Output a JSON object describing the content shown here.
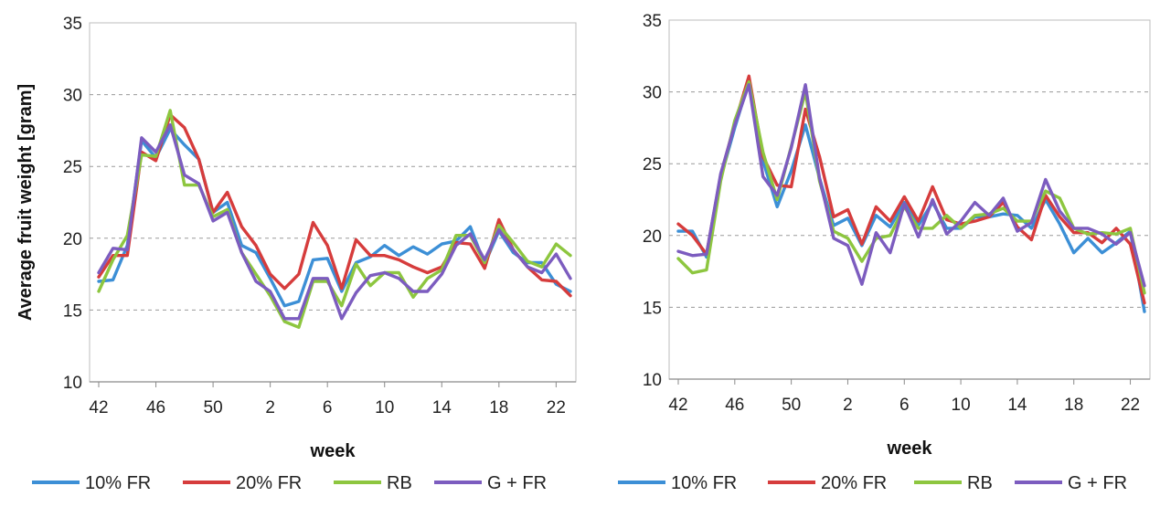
{
  "chart_data": [
    {
      "type": "line",
      "title": "",
      "xlabel": "week",
      "ylabel": "Average fruit weight [gram]",
      "ylim": [
        10,
        35
      ],
      "yticks": [
        10,
        15,
        20,
        25,
        30,
        35
      ],
      "grid": "horizontal dashed",
      "legend": "bottom",
      "x": [
        42,
        43,
        44,
        45,
        46,
        47,
        48,
        49,
        50,
        51,
        52,
        1,
        2,
        3,
        4,
        5,
        6,
        7,
        8,
        9,
        10,
        11,
        12,
        13,
        14,
        15,
        16,
        17,
        18,
        19,
        20,
        21,
        22,
        23
      ],
      "xtick_labels": [
        "42",
        "46",
        "50",
        "2",
        "6",
        "10",
        "14",
        "18",
        "22"
      ],
      "xtick_index": [
        0,
        4,
        8,
        12,
        16,
        20,
        24,
        28,
        32
      ],
      "series": [
        {
          "name": "10% FR",
          "color": "#3c8fd6",
          "values": [
            17.0,
            17.1,
            19.5,
            26.8,
            25.6,
            27.6,
            26.5,
            25.5,
            21.8,
            22.5,
            19.5,
            19.0,
            17.2,
            15.3,
            15.6,
            18.5,
            18.6,
            16.3,
            18.3,
            18.7,
            19.5,
            18.8,
            19.4,
            18.9,
            19.6,
            19.8,
            20.8,
            18.2,
            20.5,
            19.0,
            18.3,
            18.3,
            16.8,
            16.3
          ]
        },
        {
          "name": "20% FR",
          "color": "#d63c3c",
          "values": [
            17.3,
            18.8,
            18.8,
            26.0,
            25.4,
            28.6,
            27.7,
            25.5,
            21.8,
            23.2,
            20.8,
            19.5,
            17.5,
            16.5,
            17.5,
            21.1,
            19.5,
            16.5,
            19.9,
            18.8,
            18.8,
            18.5,
            18.0,
            17.6,
            18.0,
            19.7,
            19.6,
            17.9,
            21.3,
            19.2,
            18.0,
            17.1,
            17.0,
            16.0
          ]
        },
        {
          "name": "RB",
          "color": "#8dc63f",
          "values": [
            16.3,
            18.5,
            20.2,
            25.8,
            25.7,
            28.9,
            23.7,
            23.7,
            21.5,
            22.0,
            19.0,
            17.5,
            16.0,
            14.2,
            13.8,
            17.0,
            17.0,
            15.3,
            18.2,
            16.7,
            17.6,
            17.6,
            15.9,
            17.2,
            17.8,
            20.2,
            20.2,
            18.3,
            20.9,
            19.7,
            18.4,
            18.0,
            19.6,
            18.8
          ]
        },
        {
          "name": "G + FR",
          "color": "#7c5cbf",
          "values": [
            17.6,
            19.3,
            19.2,
            27.0,
            26.0,
            27.9,
            24.4,
            23.8,
            21.2,
            21.8,
            19.0,
            17.0,
            16.3,
            14.4,
            14.4,
            17.2,
            17.2,
            14.4,
            16.2,
            17.4,
            17.6,
            17.2,
            16.3,
            16.3,
            17.5,
            19.5,
            20.3,
            18.5,
            20.6,
            19.2,
            18.0,
            17.6,
            18.9,
            17.2
          ]
        }
      ]
    },
    {
      "type": "line",
      "title": "",
      "xlabel": "week",
      "ylabel": "",
      "ylim": [
        10,
        35
      ],
      "yticks": [
        10,
        15,
        20,
        25,
        30,
        35
      ],
      "grid": "horizontal dashed",
      "legend": "bottom",
      "x": [
        42,
        43,
        44,
        45,
        46,
        47,
        48,
        49,
        50,
        51,
        52,
        1,
        2,
        3,
        4,
        5,
        6,
        7,
        8,
        9,
        10,
        11,
        12,
        13,
        14,
        15,
        16,
        17,
        18,
        19,
        20,
        21,
        22,
        23
      ],
      "xtick_labels": [
        "42",
        "46",
        "50",
        "2",
        "6",
        "10",
        "14",
        "18",
        "22"
      ],
      "xtick_index": [
        0,
        4,
        8,
        12,
        16,
        20,
        24,
        28,
        32
      ],
      "series": [
        {
          "name": "10% FR",
          "color": "#3c8fd6",
          "values": [
            20.3,
            20.3,
            18.5,
            24.0,
            27.5,
            30.7,
            25.2,
            22.0,
            24.5,
            27.7,
            24.0,
            20.7,
            21.2,
            19.3,
            21.4,
            20.6,
            22.3,
            20.7,
            22.3,
            20.5,
            20.5,
            21.3,
            21.3,
            21.5,
            21.4,
            20.5,
            22.5,
            20.8,
            18.8,
            19.8,
            18.8,
            19.5,
            20.3,
            14.7
          ]
        },
        {
          "name": "20% FR",
          "color": "#d63c3c",
          "values": [
            20.8,
            20.0,
            18.7,
            24.2,
            27.8,
            31.1,
            25.5,
            23.5,
            23.4,
            28.8,
            25.5,
            21.3,
            21.8,
            19.4,
            22.0,
            21.0,
            22.7,
            21.0,
            23.4,
            21.1,
            20.8,
            21.0,
            21.3,
            22.3,
            20.6,
            19.7,
            22.8,
            21.3,
            20.2,
            20.2,
            19.5,
            20.5,
            19.4,
            15.3
          ]
        },
        {
          "name": "RB",
          "color": "#8dc63f",
          "values": [
            18.4,
            17.4,
            17.6,
            23.8,
            28.0,
            30.7,
            25.8,
            22.5,
            26.2,
            30.0,
            23.8,
            20.3,
            19.8,
            18.2,
            19.8,
            20.0,
            22.0,
            20.5,
            20.5,
            21.4,
            20.5,
            21.4,
            21.5,
            21.9,
            21.0,
            21.0,
            23.1,
            22.6,
            20.5,
            20.1,
            20.2,
            20.1,
            20.5,
            16.0
          ]
        },
        {
          "name": "G + FR",
          "color": "#7c5cbf",
          "values": [
            18.9,
            18.6,
            18.7,
            24.3,
            27.7,
            30.5,
            24.1,
            22.8,
            26.1,
            30.5,
            24.0,
            19.8,
            19.3,
            16.6,
            20.2,
            18.8,
            22.2,
            19.9,
            22.5,
            20.1,
            21.0,
            22.3,
            21.4,
            22.6,
            20.3,
            20.9,
            23.9,
            21.7,
            20.5,
            20.5,
            20.1,
            19.4,
            20.2,
            16.5
          ]
        }
      ]
    }
  ]
}
